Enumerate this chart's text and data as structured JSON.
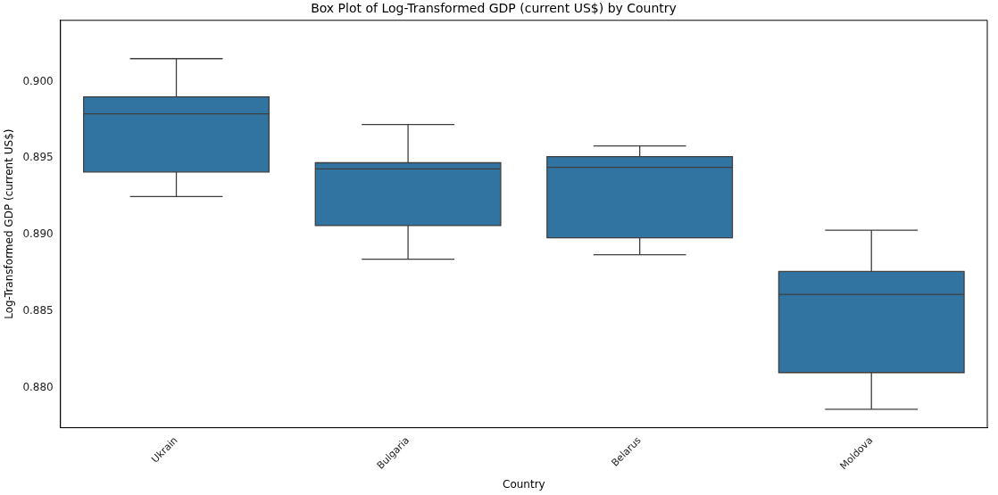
{
  "chart_data": {
    "type": "box",
    "title": "Box Plot of Log-Transformed GDP (current US$) by Country",
    "xlabel": "Country",
    "ylabel": "Log-Transformed GDP (current US$)",
    "categories": [
      "Ukrain",
      "Bulgaria",
      "Belarus",
      "Moldova"
    ],
    "color": "#3274a1",
    "boxes": [
      {
        "low": 0.8925,
        "q1": 0.8941,
        "median": 0.8979,
        "q3": 0.899,
        "high": 0.9015
      },
      {
        "low": 0.8884,
        "q1": 0.8906,
        "median": 0.8943,
        "q3": 0.8947,
        "high": 0.8972
      },
      {
        "low": 0.8887,
        "q1": 0.8898,
        "median": 0.8944,
        "q3": 0.8951,
        "high": 0.8958
      },
      {
        "low": 0.8786,
        "q1": 0.881,
        "median": 0.8861,
        "q3": 0.8876,
        "high": 0.8903
      }
    ],
    "ylim": [
      0.8774,
      0.904
    ],
    "yticks": [
      {
        "value": 0.88,
        "label": "0.880"
      },
      {
        "value": 0.885,
        "label": "0.885"
      },
      {
        "value": 0.89,
        "label": "0.890"
      },
      {
        "value": 0.895,
        "label": "0.895"
      },
      {
        "value": 0.9,
        "label": "0.900"
      }
    ],
    "grid": false,
    "legend": false
  }
}
